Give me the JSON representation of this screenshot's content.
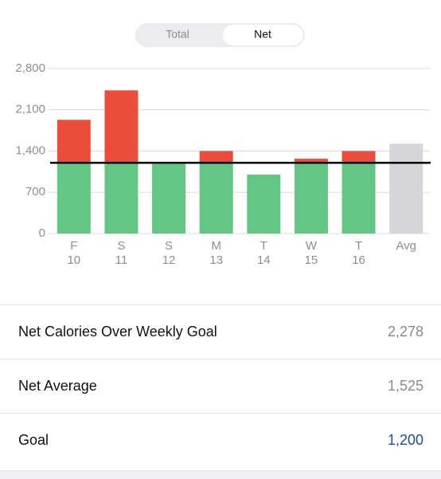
{
  "toggle": {
    "options": [
      "Total",
      "Net"
    ],
    "selected": 1
  },
  "chart_data": {
    "type": "bar",
    "stacked": true,
    "categories": [
      "F",
      "S",
      "S",
      "M",
      "T",
      "W",
      "T",
      "Avg"
    ],
    "dates": [
      10,
      11,
      12,
      13,
      14,
      15,
      16,
      null
    ],
    "series": [
      {
        "color": "#65c587",
        "values": [
          1200,
          1200,
          1200,
          1200,
          1000,
          1200,
          1200,
          null
        ]
      },
      {
        "color": "#e94e3d",
        "values": [
          730,
          1230,
          null,
          200,
          null,
          70,
          200,
          null
        ]
      },
      {
        "color": "#d5d5da",
        "values": [
          null,
          null,
          null,
          null,
          null,
          null,
          null,
          1525
        ]
      }
    ],
    "goal_line": 1200,
    "ylim": [
      0,
      2800
    ],
    "yticks": [
      0,
      700,
      {
        "value": 1400,
        "label": "1,400"
      },
      {
        "value": 2100,
        "label": "2,100"
      },
      {
        "value": 2800,
        "label": "2,800"
      }
    ],
    "grid": true
  },
  "rows": [
    {
      "label": "Net Calories Over Weekly Goal",
      "value": "2,278"
    },
    {
      "label": "Net Average",
      "value": "1,525"
    },
    {
      "label": "Goal",
      "value": "1,200"
    }
  ]
}
